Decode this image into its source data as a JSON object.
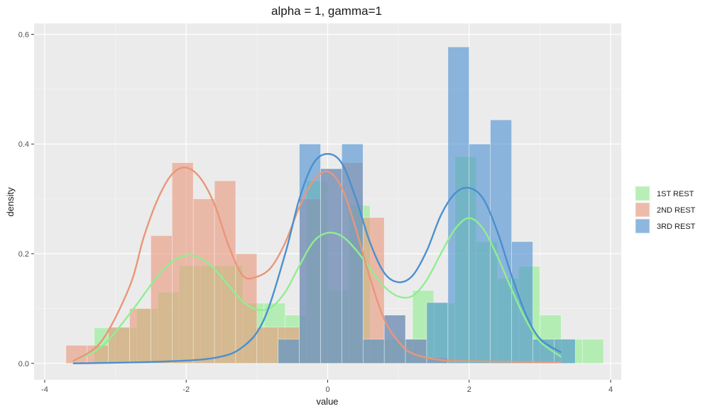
{
  "chart_data": {
    "type": "histogram-density",
    "title": "alpha = 1, gamma=1",
    "xlabel": "value",
    "ylabel": "density",
    "xlim": [
      -4.15,
      4.15
    ],
    "ylim": [
      -0.03,
      0.62
    ],
    "xticks": [
      -4,
      -2,
      0,
      2,
      4
    ],
    "xtick_labels": [
      "-4",
      "-2",
      "0",
      "2",
      "4"
    ],
    "yticks": [
      0.0,
      0.2,
      0.4,
      0.6
    ],
    "ytick_labels": [
      "0.0",
      "0.2",
      "0.4",
      "0.6"
    ],
    "grid": true,
    "legend_position": "right",
    "bin_width": 0.3,
    "series": [
      {
        "name": "1ST REST",
        "fill": "#90EE90",
        "line": "#90EE90",
        "bins": [
          {
            "x0": -3.3,
            "y": 0.065
          },
          {
            "x0": -3.0,
            "y": 0.065
          },
          {
            "x0": -2.7,
            "y": 0.1
          },
          {
            "x0": -2.4,
            "y": 0.13
          },
          {
            "x0": -2.1,
            "y": 0.178
          },
          {
            "x0": -1.8,
            "y": 0.178
          },
          {
            "x0": -1.5,
            "y": 0.178
          },
          {
            "x0": -1.2,
            "y": 0.11
          },
          {
            "x0": -0.9,
            "y": 0.11
          },
          {
            "x0": -0.6,
            "y": 0.088
          },
          {
            "x0": -0.3,
            "y": 0.333
          },
          {
            "x0": 0.0,
            "y": 0.133
          },
          {
            "x0": 0.3,
            "y": 0.288
          },
          {
            "x0": 0.6,
            "y": 0.044
          },
          {
            "x0": 0.9,
            "y": 0.044
          },
          {
            "x0": 1.2,
            "y": 0.133
          },
          {
            "x0": 1.5,
            "y": 0.11
          },
          {
            "x0": 1.8,
            "y": 0.377
          },
          {
            "x0": 2.1,
            "y": 0.222
          },
          {
            "x0": 2.4,
            "y": 0.155
          },
          {
            "x0": 2.7,
            "y": 0.177
          },
          {
            "x0": 3.0,
            "y": 0.088
          },
          {
            "x0": 3.3,
            "y": 0.044
          },
          {
            "x0": 3.6,
            "y": 0.044
          }
        ],
        "density_x": [
          -3.6,
          -3.2,
          -2.8,
          -2.4,
          -2.2,
          -2.0,
          -1.8,
          -1.6,
          -1.4,
          -1.2,
          -1.0,
          -0.8,
          -0.6,
          -0.4,
          -0.2,
          0.0,
          0.2,
          0.4,
          0.6,
          0.8,
          1.0,
          1.2,
          1.4,
          1.6,
          1.8,
          2.0,
          2.2,
          2.4,
          2.6,
          2.8,
          3.0,
          3.3
        ],
        "density_y": [
          0.005,
          0.03,
          0.09,
          0.16,
          0.185,
          0.197,
          0.192,
          0.172,
          0.142,
          0.113,
          0.098,
          0.102,
          0.13,
          0.178,
          0.222,
          0.238,
          0.232,
          0.207,
          0.173,
          0.14,
          0.122,
          0.123,
          0.152,
          0.2,
          0.245,
          0.265,
          0.245,
          0.195,
          0.135,
          0.08,
          0.04,
          0.012
        ]
      },
      {
        "name": "2ND REST",
        "fill": "#E9967A",
        "line": "#E9967A",
        "bins": [
          {
            "x0": -3.7,
            "y": 0.033
          },
          {
            "x0": -3.4,
            "y": 0.033
          },
          {
            "x0": -3.1,
            "y": 0.066
          },
          {
            "x0": -2.8,
            "y": 0.1
          },
          {
            "x0": -2.5,
            "y": 0.233
          },
          {
            "x0": -2.2,
            "y": 0.366
          },
          {
            "x0": -1.9,
            "y": 0.3
          },
          {
            "x0": -1.6,
            "y": 0.333
          },
          {
            "x0": -1.3,
            "y": 0.2
          },
          {
            "x0": -1.0,
            "y": 0.066
          },
          {
            "x0": -0.7,
            "y": 0.066
          },
          {
            "x0": -0.4,
            "y": 0.3
          },
          {
            "x0": -0.1,
            "y": 0.355
          },
          {
            "x0": 0.2,
            "y": 0.366
          },
          {
            "x0": 0.5,
            "y": 0.266
          },
          {
            "x0": 0.8,
            "y": 0.088
          },
          {
            "x0": 1.1,
            "y": 0.044
          },
          {
            "x0": 1.4,
            "y": 0.011
          }
        ],
        "density_x": [
          -3.6,
          -3.2,
          -2.8,
          -2.6,
          -2.4,
          -2.2,
          -2.0,
          -1.8,
          -1.6,
          -1.4,
          -1.2,
          -1.0,
          -0.8,
          -0.6,
          -0.4,
          -0.2,
          0.0,
          0.2,
          0.4,
          0.6,
          0.8,
          1.0,
          1.2,
          1.6,
          2.0,
          2.6,
          3.3
        ],
        "density_y": [
          0.004,
          0.04,
          0.14,
          0.23,
          0.3,
          0.345,
          0.357,
          0.338,
          0.29,
          0.215,
          0.16,
          0.158,
          0.175,
          0.22,
          0.285,
          0.333,
          0.35,
          0.32,
          0.245,
          0.155,
          0.08,
          0.04,
          0.018,
          0.006,
          0.004,
          0.003,
          0.002
        ]
      },
      {
        "name": "3RD REST",
        "fill": "#4A90D0",
        "line": "#4A90D0",
        "bins": [
          {
            "x0": -0.7,
            "y": 0.044
          },
          {
            "x0": -0.4,
            "y": 0.4
          },
          {
            "x0": -0.1,
            "y": 0.355
          },
          {
            "x0": 0.2,
            "y": 0.4
          },
          {
            "x0": 0.5,
            "y": 0.044
          },
          {
            "x0": 0.8,
            "y": 0.088
          },
          {
            "x0": 1.1,
            "y": 0.044
          },
          {
            "x0": 1.4,
            "y": 0.111
          },
          {
            "x0": 1.7,
            "y": 0.577
          },
          {
            "x0": 2.0,
            "y": 0.4
          },
          {
            "x0": 2.3,
            "y": 0.444
          },
          {
            "x0": 2.6,
            "y": 0.222
          },
          {
            "x0": 2.9,
            "y": 0.044
          },
          {
            "x0": 3.2,
            "y": 0.044
          }
        ],
        "density_x": [
          -3.6,
          -2.4,
          -1.6,
          -1.2,
          -0.9,
          -0.6,
          -0.4,
          -0.2,
          0.0,
          0.2,
          0.4,
          0.6,
          0.8,
          1.0,
          1.2,
          1.4,
          1.6,
          1.8,
          2.0,
          2.2,
          2.4,
          2.6,
          2.8,
          3.0,
          3.3
        ],
        "density_y": [
          0.0,
          0.003,
          0.01,
          0.03,
          0.08,
          0.2,
          0.3,
          0.365,
          0.382,
          0.365,
          0.3,
          0.22,
          0.165,
          0.148,
          0.16,
          0.205,
          0.27,
          0.31,
          0.32,
          0.3,
          0.24,
          0.16,
          0.09,
          0.045,
          0.02
        ]
      }
    ]
  }
}
